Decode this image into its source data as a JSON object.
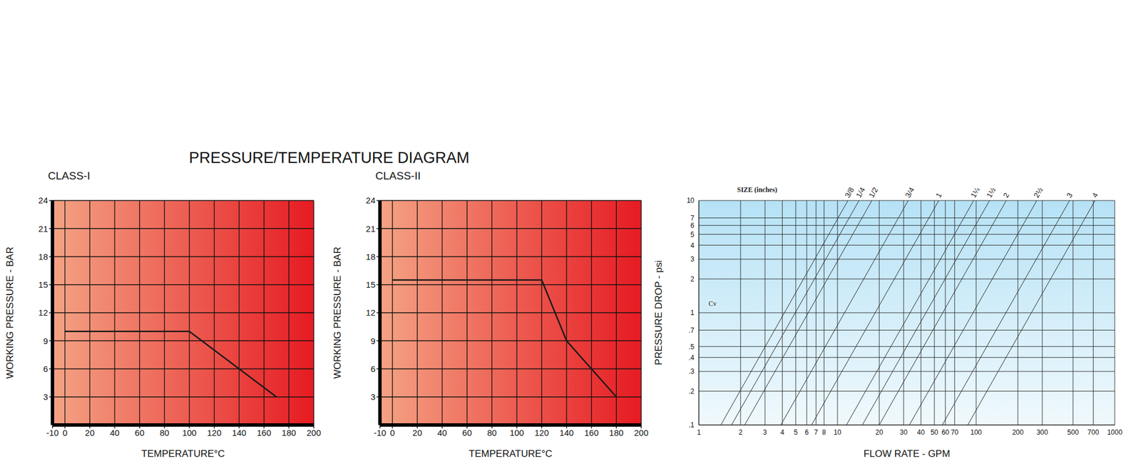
{
  "title": "PRESSURE/TEMPERATURE DIAGRAM",
  "chart_data": [
    {
      "type": "line",
      "title": "CLASS-I",
      "x_label": "TEMPERATURE°C",
      "y_label": "WORKING PRESSURE - BAR",
      "x": [
        0,
        100,
        170
      ],
      "values": [
        10,
        10,
        3
      ],
      "color": "#1a1a1a",
      "xlim": [
        -10,
        200
      ],
      "xticks": [
        -10,
        0,
        20,
        40,
        60,
        80,
        100,
        120,
        140,
        160,
        180,
        200
      ],
      "ylim": [
        0,
        24
      ],
      "yticks": [
        3,
        6,
        9,
        12,
        15,
        18,
        21,
        24
      ],
      "grid": true
    },
    {
      "type": "line",
      "title": "CLASS-II",
      "x_label": "TEMPERATURE°C",
      "y_label": "WORKING PRESSURE - BAR",
      "x": [
        0,
        120,
        140,
        180
      ],
      "values": [
        15.5,
        15.5,
        9,
        3
      ],
      "color": "#1a1a1a",
      "xlim": [
        -10,
        200
      ],
      "xticks": [
        -10,
        0,
        20,
        40,
        60,
        80,
        100,
        120,
        140,
        160,
        180,
        200
      ],
      "ylim": [
        0,
        24
      ],
      "yticks": [
        3,
        6,
        9,
        12,
        15,
        18,
        21,
        24
      ],
      "grid": true
    },
    {
      "type": "line",
      "log": true,
      "grid": true,
      "color": "#2a2a2a",
      "x_label": "FLOW RATE - GPM",
      "y_label": "PRESSURE DROP - psi",
      "annotations": [
        "SIZE (inches)",
        "Cv"
      ],
      "xlim": [
        1,
        1000
      ],
      "xticks": [
        1,
        2,
        3,
        4,
        5,
        6,
        7,
        8,
        10,
        20,
        30,
        40,
        50,
        60,
        70,
        100,
        200,
        300,
        500,
        700,
        1000
      ],
      "ylim": [
        0.1,
        10
      ],
      "yticks": [
        {
          "value": 0.1,
          "label": ".1"
        },
        {
          "value": 0.2,
          "label": ".2"
        },
        {
          "value": 0.3,
          "label": ".3"
        },
        {
          "value": 0.4,
          "label": ".4"
        },
        {
          "value": 0.5,
          "label": ".5"
        },
        {
          "value": 0.7,
          "label": ".7"
        },
        1,
        2,
        3,
        4,
        5,
        6,
        7,
        10
      ],
      "series": [
        {
          "name": "3/8",
          "x": [
            1.44,
            11.9
          ],
          "values": [
            0.1,
            10
          ]
        },
        {
          "name": "1/4",
          "x": [
            1.72,
            14.3
          ],
          "values": [
            0.1,
            10
          ]
        },
        {
          "name": "1/2",
          "x": [
            2.14,
            17.7
          ],
          "values": [
            0.1,
            10
          ]
        },
        {
          "name": "3/4",
          "x": [
            3.9,
            32.4
          ],
          "values": [
            0.1,
            10
          ]
        },
        {
          "name": "1",
          "x": [
            6.5,
            53.8
          ],
          "values": [
            0.1,
            10
          ]
        },
        {
          "name": "1¼",
          "x": [
            11.6,
            96
          ],
          "values": [
            0.1,
            10
          ]
        },
        {
          "name": "1½",
          "x": [
            15.1,
            125
          ],
          "values": [
            0.1,
            10
          ]
        },
        {
          "name": "2",
          "x": [
            20,
            165
          ],
          "values": [
            0.1,
            10
          ]
        },
        {
          "name": "2½",
          "x": [
            33,
            274
          ],
          "values": [
            0.1,
            10
          ]
        },
        {
          "name": "3",
          "x": [
            57,
            472
          ],
          "values": [
            0.1,
            10
          ]
        },
        {
          "name": "4",
          "x": [
            87,
            721
          ],
          "values": [
            0.1,
            10
          ]
        }
      ]
    }
  ]
}
